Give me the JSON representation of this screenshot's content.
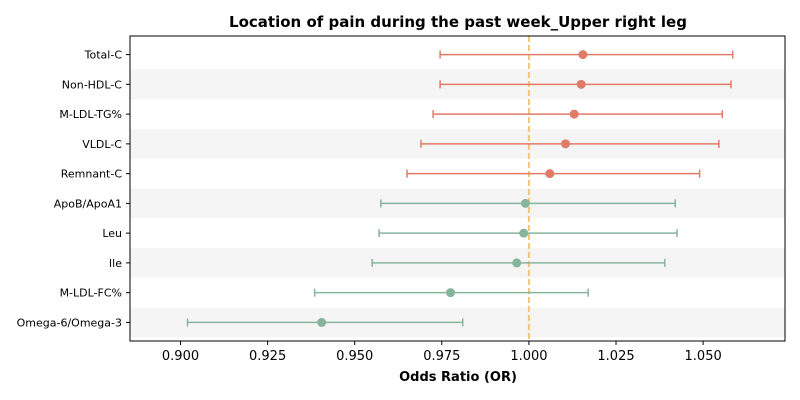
{
  "chart_data": {
    "type": "forest",
    "title": "Location of pain during the past week_Upper right leg",
    "xlabel": "Odds Ratio (OR)",
    "xlim": [
      0.8855,
      1.0735
    ],
    "xticks": [
      0.9,
      0.925,
      0.95,
      0.975,
      1.0,
      1.025,
      1.05
    ],
    "xtick_labels": [
      "0.900",
      "0.925",
      "0.950",
      "0.975",
      "1.000",
      "1.025",
      "1.050"
    ],
    "reference_line": 1.0,
    "alternating_row_shading": true,
    "colors": {
      "positive": "#e07b67",
      "negative": "#86b49c",
      "reference": "#f2c57c",
      "row_band": "#f5f5f5"
    },
    "rows": [
      {
        "label": "Total-C",
        "or": 1.0155,
        "lower": 0.9745,
        "upper": 1.0585,
        "color": "#e07b67"
      },
      {
        "label": "Non-HDL-C",
        "or": 1.015,
        "lower": 0.9745,
        "upper": 1.058,
        "color": "#e07b67"
      },
      {
        "label": "M-LDL-TG%",
        "or": 1.013,
        "lower": 0.9725,
        "upper": 1.0555,
        "color": "#e07b67"
      },
      {
        "label": "VLDL-C",
        "or": 1.0105,
        "lower": 0.969,
        "upper": 1.0545,
        "color": "#e07b67"
      },
      {
        "label": "Remnant-C",
        "or": 1.006,
        "lower": 0.965,
        "upper": 1.049,
        "color": "#e07b67"
      },
      {
        "label": "ApoB/ApoA1",
        "or": 0.999,
        "lower": 0.9575,
        "upper": 1.042,
        "color": "#86b49c"
      },
      {
        "label": "Leu",
        "or": 0.9985,
        "lower": 0.957,
        "upper": 1.0425,
        "color": "#86b49c"
      },
      {
        "label": "Ile",
        "or": 0.9965,
        "lower": 0.955,
        "upper": 1.039,
        "color": "#86b49c"
      },
      {
        "label": "M-LDL-FC%",
        "or": 0.9775,
        "lower": 0.9385,
        "upper": 1.017,
        "color": "#86b49c"
      },
      {
        "label": "Omega-6/Omega-3",
        "or": 0.9405,
        "lower": 0.902,
        "upper": 0.981,
        "color": "#86b49c"
      }
    ]
  }
}
